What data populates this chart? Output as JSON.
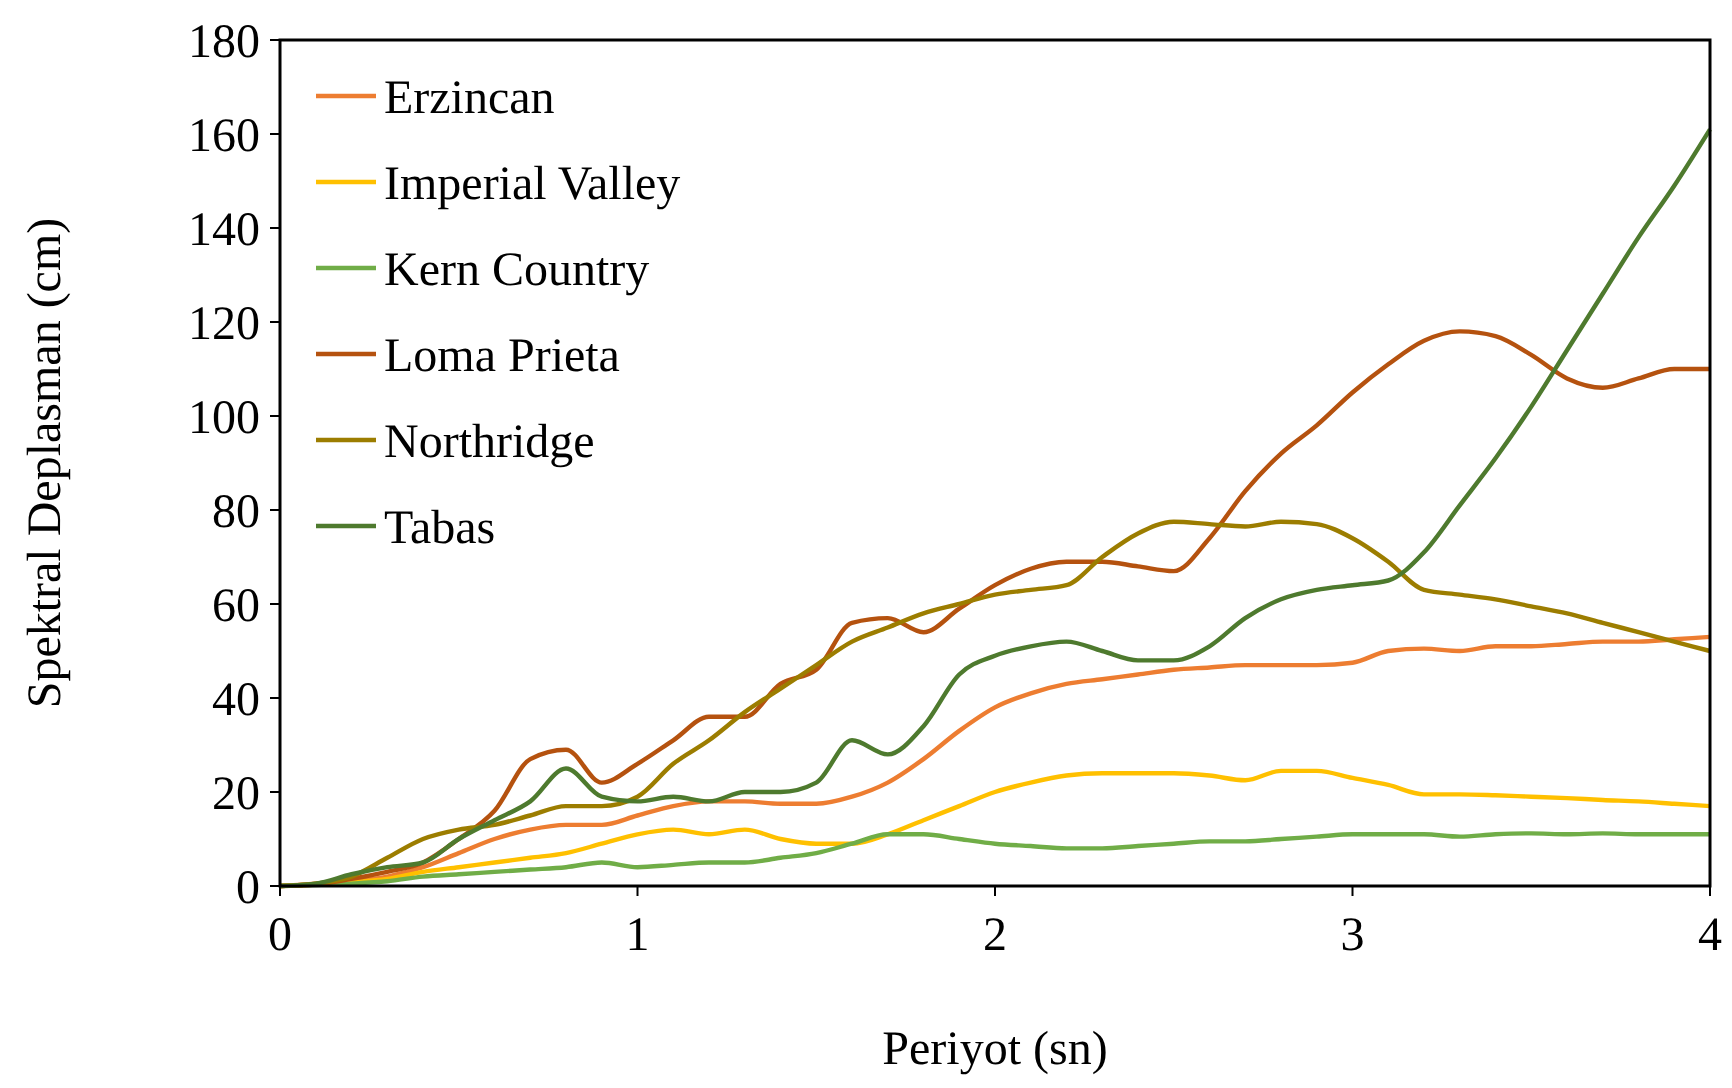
{
  "chart_data": {
    "type": "line",
    "xlabel": "Periyot (sn)",
    "ylabel": "Spektral Deplasman (cm)",
    "xlim": [
      0,
      4
    ],
    "xticks": [
      0,
      1,
      2,
      3,
      4
    ],
    "ylim": [
      0,
      180
    ],
    "yticks": [
      0,
      20,
      40,
      60,
      80,
      100,
      120,
      140,
      160,
      180
    ],
    "grid": false,
    "legend": "top left",
    "marker": "none",
    "line_style": "solid",
    "x": [
      0,
      0.1,
      0.2,
      0.3,
      0.4,
      0.5,
      0.6,
      0.7,
      0.8,
      0.9,
      1,
      1.1,
      1.2,
      1.3,
      1.4,
      1.5,
      1.6,
      1.7,
      1.8,
      1.9,
      2,
      2.1,
      2.2,
      2.3,
      2.4,
      2.5,
      2.6,
      2.7,
      2.8,
      2.9,
      3,
      3.1,
      3.2,
      3.3,
      3.4,
      3.5,
      3.6,
      3.7,
      3.8,
      3.9,
      4
    ],
    "series": [
      {
        "name": "Erzincan",
        "color": "#ed7d31",
        "values": [
          0,
          0.5,
          1,
          2,
          4,
          7,
          10,
          12,
          13,
          13,
          15,
          17,
          18,
          18,
          17.5,
          17.5,
          19,
          22,
          27,
          33,
          38,
          41,
          43,
          44,
          45,
          46,
          46.5,
          47,
          47,
          47,
          47.5,
          50,
          50.5,
          50,
          51,
          51,
          51.5,
          52,
          52,
          52.5,
          53
        ]
      },
      {
        "name": "Imperial Valley",
        "color": "#ffc000",
        "values": [
          0,
          0.3,
          0.8,
          1.5,
          3,
          4,
          5,
          6,
          7,
          9,
          11,
          12,
          11,
          12,
          10,
          9,
          9,
          11,
          14,
          17,
          20,
          22,
          23.5,
          24,
          24,
          24,
          23.5,
          22.5,
          24.5,
          24.5,
          23,
          21.5,
          19.5,
          19.5,
          19.3,
          19,
          18.7,
          18.3,
          18,
          17.5,
          17
        ]
      },
      {
        "name": "Kern Country",
        "color": "#70ad47",
        "values": [
          0,
          0.2,
          0.5,
          1,
          2,
          2.5,
          3,
          3.5,
          4,
          5,
          4,
          4.5,
          5,
          5,
          6,
          7,
          9,
          11,
          11,
          10,
          9,
          8.5,
          8,
          8,
          8.5,
          9,
          9.5,
          9.5,
          10,
          10.5,
          11,
          11,
          11,
          10.5,
          11,
          11.2,
          11,
          11.2,
          11,
          11,
          11
        ]
      },
      {
        "name": "Loma Prieta",
        "color": "#b5520f",
        "values": [
          0,
          0.3,
          1.5,
          3,
          5,
          10,
          16,
          27,
          29,
          22,
          26,
          31,
          36,
          36,
          43,
          46,
          56,
          57,
          54,
          59,
          64,
          67.5,
          69,
          69,
          68,
          67,
          74,
          84,
          92,
          98,
          105,
          111,
          116,
          118,
          117,
          113,
          108,
          106,
          108,
          110,
          110
        ]
      },
      {
        "name": "Northridge",
        "color": "#9c7d00",
        "values": [
          0,
          0.5,
          2,
          6,
          10,
          12,
          13,
          15,
          17,
          17,
          19,
          26,
          31,
          37,
          42,
          47,
          52,
          55,
          58,
          60,
          62,
          63,
          64,
          70,
          75,
          77.5,
          77,
          76.5,
          77.5,
          77,
          74,
          69,
          63,
          62,
          61,
          59.5,
          58,
          56,
          54,
          52,
          50
        ]
      },
      {
        "name": "Tabas",
        "color": "#4e7a2e",
        "values": [
          0,
          0.5,
          2.5,
          4,
          5,
          10,
          14,
          18,
          25,
          19,
          18,
          19,
          18,
          20,
          20,
          22,
          31,
          28,
          34,
          45,
          49,
          51,
          52,
          50,
          48,
          48,
          51,
          57,
          61,
          63,
          64,
          65,
          71,
          81,
          91,
          102,
          114,
          126,
          138,
          149,
          161
        ]
      }
    ]
  }
}
